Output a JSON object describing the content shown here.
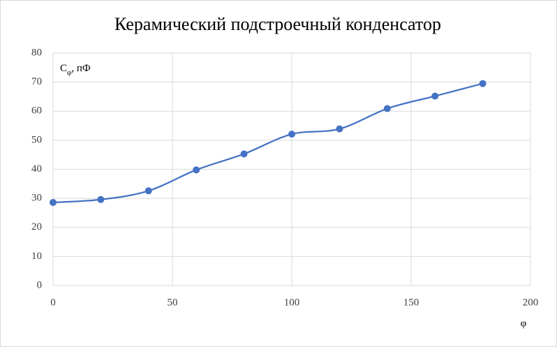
{
  "chart_data": {
    "type": "scatter",
    "smooth": true,
    "title": "Керамический подстроечный конденсатор",
    "xlabel": "φ",
    "ylabel": {
      "main": "C",
      "sub": "φ",
      "rest": ", пФ"
    },
    "x": [
      0,
      20,
      40,
      60,
      80,
      100,
      120,
      140,
      160,
      180
    ],
    "series": [
      {
        "name": "Cφ",
        "color": "#4472c4",
        "values": [
          28.6,
          29.6,
          32.6,
          39.8,
          45.3,
          52.1,
          53.9,
          60.9,
          65.2,
          69.5
        ]
      }
    ],
    "xlim": [
      0,
      200
    ],
    "xticks": [
      0,
      50,
      100,
      150,
      200
    ],
    "ylim": [
      0,
      80
    ],
    "yticks": [
      0,
      10,
      20,
      30,
      40,
      50,
      60,
      70,
      80
    ],
    "grid": true
  }
}
